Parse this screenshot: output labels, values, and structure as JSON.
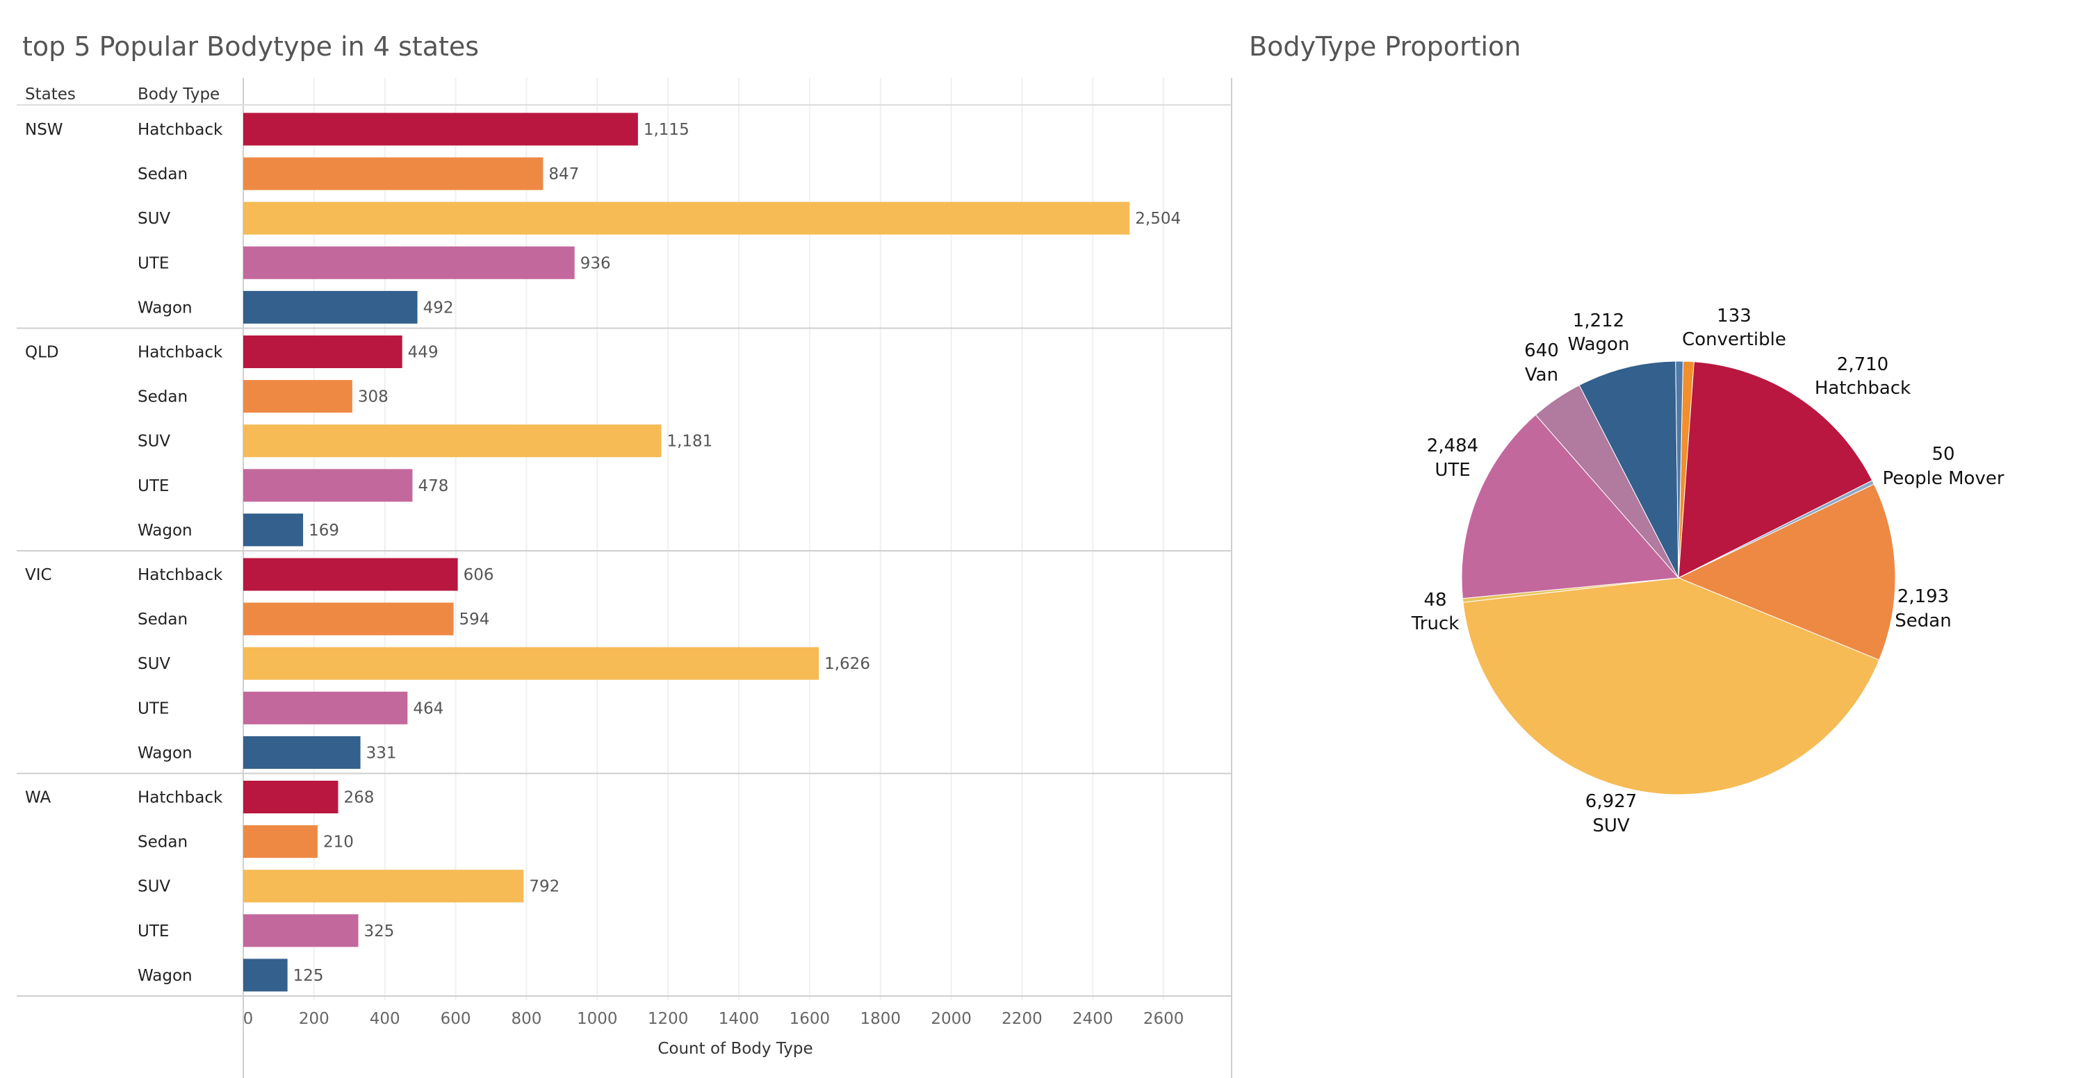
{
  "chart_data": [
    {
      "type": "bar",
      "orientation": "horizontal",
      "title": "top 5 Popular Bodytype in 4 states",
      "row_headers": [
        "States",
        "Body Type"
      ],
      "xlabel": "Count of Body Type",
      "xlim": [
        0,
        2600
      ],
      "xticks": [
        0,
        200,
        400,
        600,
        800,
        1000,
        1200,
        1400,
        1600,
        1800,
        2000,
        2200,
        2400,
        2600
      ],
      "grid": true,
      "categories": [
        "Hatchback",
        "Sedan",
        "SUV",
        "UTE",
        "Wagon"
      ],
      "colors": {
        "Hatchback": "#b9173f",
        "Sedan": "#ee8944",
        "SUV": "#f6bb55",
        "UTE": "#c3689c",
        "Wagon": "#33608c"
      },
      "groups": [
        {
          "state": "NSW",
          "values": [
            1115,
            847,
            2504,
            936,
            492
          ],
          "labels": [
            "1,115",
            "847",
            "2,504",
            "936",
            "492"
          ]
        },
        {
          "state": "QLD",
          "values": [
            449,
            308,
            1181,
            478,
            169
          ],
          "labels": [
            "449",
            "308",
            "1,181",
            "478",
            "169"
          ]
        },
        {
          "state": "VIC",
          "values": [
            606,
            594,
            1626,
            464,
            331
          ],
          "labels": [
            "606",
            "594",
            "1,626",
            "464",
            "331"
          ]
        },
        {
          "state": "WA",
          "values": [
            268,
            210,
            792,
            325,
            125
          ],
          "labels": [
            "268",
            "210",
            "792",
            "325",
            "125"
          ]
        }
      ]
    },
    {
      "type": "pie",
      "title": "BodyType Proportion",
      "slices": [
        {
          "name": "Convertible",
          "value": 133,
          "label": "133",
          "color": "#f28e2b"
        },
        {
          "name": "Hatchback",
          "value": 2710,
          "label": "2,710",
          "color": "#b9173f"
        },
        {
          "name": "People Mover",
          "value": 50,
          "label": "50",
          "color": "#8fa9c4"
        },
        {
          "name": "Sedan",
          "value": 2193,
          "label": "2,193",
          "color": "#ee8944"
        },
        {
          "name": "SUV",
          "value": 6927,
          "label": "6,927",
          "color": "#f6bb55"
        },
        {
          "name": "Truck",
          "value": 48,
          "label": "48",
          "color": "#e7c35c"
        },
        {
          "name": "UTE",
          "value": 2484,
          "label": "2,484",
          "color": "#c3689c"
        },
        {
          "name": "Van",
          "value": 640,
          "label": "640",
          "color": "#b17a9f"
        },
        {
          "name": "Wagon",
          "value": 1212,
          "label": "1,212",
          "color": "#33608c"
        },
        {
          "value": 90,
          "color": "#4f79a9"
        }
      ]
    }
  ]
}
